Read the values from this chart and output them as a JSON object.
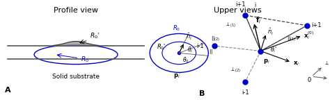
{
  "bg_color": "#ffffff",
  "title_profile": "Profile view",
  "title_upper": "Upper views",
  "label_A": "A",
  "label_B": "B",
  "solid_substrate": "Solid substrate",
  "text_color": "#000000",
  "blue_color": "#0000cc",
  "dark_color": "#222222",
  "gray_color": "#888888"
}
